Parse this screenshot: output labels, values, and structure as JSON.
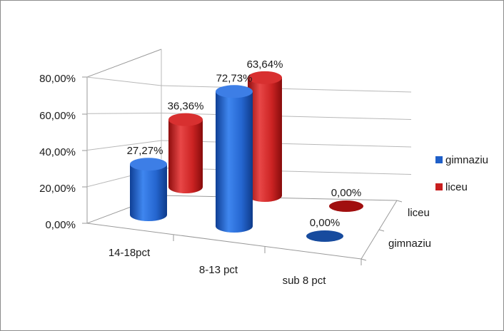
{
  "chart_data": {
    "type": "bar",
    "style": "3d-cylinder",
    "categories": [
      "14-18pct",
      "8-13 pct",
      "sub 8 pct"
    ],
    "series": [
      {
        "name": "gimnaziu",
        "values": [
          27.27,
          72.73,
          0
        ],
        "labels": [
          "27,27%",
          "72,73%",
          "0,00%"
        ],
        "color": "#1f5fc8"
      },
      {
        "name": "liceu",
        "values": [
          36.36,
          63.64,
          0
        ],
        "labels": [
          "36,36%",
          "63,64%",
          "0,00%"
        ],
        "color": "#c81e1e"
      }
    ],
    "depth_labels": [
      "liceu",
      "gimnaziu"
    ],
    "y_ticks": [
      "0,00%",
      "20,00%",
      "40,00%",
      "60,00%",
      "80,00%"
    ],
    "ylim": [
      0,
      80
    ],
    "grid": true,
    "legend_position": "right",
    "title": "",
    "xlabel": "",
    "ylabel": ""
  }
}
